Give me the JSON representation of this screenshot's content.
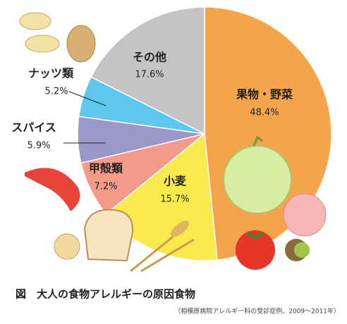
{
  "chart_data": {
    "type": "pie",
    "title": "図　大人の食物アレルギーの原因食物",
    "source": "（相模原病院アレルギー科の受診症例、2009～2011年）",
    "categories": [
      "果物・野菜",
      "小麦",
      "甲殻類",
      "スパイス",
      "ナッツ類",
      "その他"
    ],
    "values": [
      48.4,
      15.7,
      7.2,
      5.9,
      5.2,
      17.6
    ],
    "value_labels": [
      "48.4%",
      "15.7%",
      "7.2%",
      "5.9%",
      "5.2%",
      "17.6%"
    ],
    "colors": [
      "#f5a44b",
      "#f8ea4c",
      "#f29b8a",
      "#9c97c9",
      "#5ec7f0",
      "#c4c4c4"
    ]
  }
}
